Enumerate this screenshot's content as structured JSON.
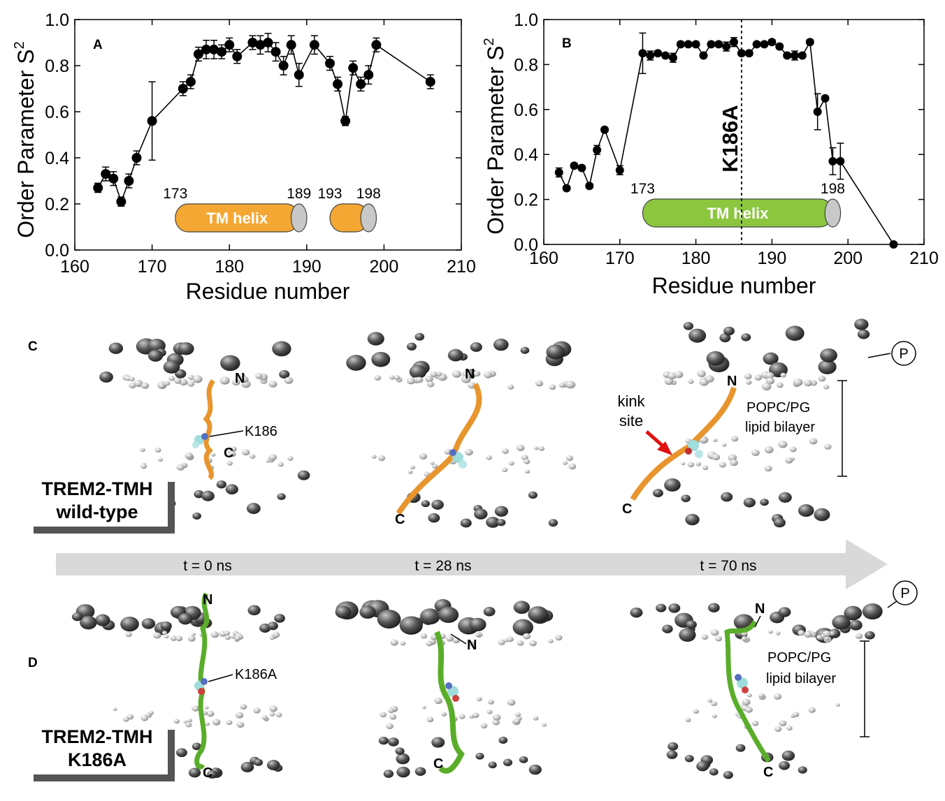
{
  "chart_data": [
    {
      "type": "line",
      "panel_label": "A",
      "xlabel": "Residue number",
      "ylabel": "Order Parameter S",
      "ylabel_sup": "2",
      "xlim": [
        160,
        210
      ],
      "ylim": [
        0,
        1
      ],
      "x_ticks": [
        "160",
        "170",
        "180",
        "190",
        "200",
        "210"
      ],
      "y_ticks": [
        "0.0",
        "0.2",
        "0.4",
        "0.6",
        "0.8",
        "1.0"
      ],
      "grid": false,
      "x": [
        163,
        164,
        165,
        166,
        167,
        168,
        170,
        174,
        175,
        176,
        177,
        178,
        179,
        180,
        181,
        183,
        184,
        185,
        186,
        187,
        188,
        189,
        191,
        193,
        194,
        195,
        196,
        197,
        198,
        199,
        206
      ],
      "y": [
        0.27,
        0.33,
        0.31,
        0.21,
        0.3,
        0.4,
        0.56,
        0.7,
        0.73,
        0.85,
        0.87,
        0.87,
        0.86,
        0.89,
        0.84,
        0.9,
        0.89,
        0.9,
        0.86,
        0.8,
        0.89,
        0.76,
        0.89,
        0.81,
        0.72,
        0.56,
        0.79,
        0.72,
        0.76,
        0.89,
        0.73
      ],
      "errors": [
        0.02,
        0.03,
        0.03,
        0.02,
        0.03,
        0.03,
        0.17,
        0.03,
        0.03,
        0.03,
        0.04,
        0.04,
        0.03,
        0.03,
        0.03,
        0.03,
        0.04,
        0.04,
        0.04,
        0.04,
        0.04,
        0.05,
        0.04,
        0.03,
        0.03,
        0.02,
        0.03,
        0.03,
        0.04,
        0.03,
        0.03
      ],
      "helices": [
        {
          "label": "TM helix",
          "start": "173",
          "end": "189",
          "from": 173,
          "to": 189
        },
        {
          "label": "",
          "start": "193",
          "end": "198",
          "from": 193,
          "to": 198
        }
      ],
      "helix_color": "#f4a733"
    },
    {
      "type": "line",
      "panel_label": "B",
      "xlabel": "Residue number",
      "ylabel": "Order Parameter S",
      "ylabel_sup": "2",
      "xlim": [
        160,
        210
      ],
      "ylim": [
        0,
        1
      ],
      "x_ticks": [
        "160",
        "170",
        "180",
        "190",
        "200",
        "210"
      ],
      "y_ticks": [
        "0.0",
        "0.2",
        "0.4",
        "0.6",
        "0.8",
        "1.0"
      ],
      "grid": false,
      "x": [
        162,
        163,
        164,
        165,
        166,
        167,
        168,
        170,
        173,
        174,
        175,
        176,
        177,
        178,
        179,
        180,
        181,
        182,
        183,
        184,
        185,
        186,
        187,
        188,
        189,
        190,
        191,
        192,
        193,
        194,
        195,
        196,
        197,
        198,
        199,
        206
      ],
      "y": [
        0.32,
        0.25,
        0.35,
        0.34,
        0.26,
        0.42,
        0.51,
        0.33,
        0.85,
        0.84,
        0.85,
        0.84,
        0.83,
        0.89,
        0.89,
        0.89,
        0.84,
        0.89,
        0.89,
        0.88,
        0.9,
        0.85,
        0.85,
        0.89,
        0.89,
        0.9,
        0.88,
        0.84,
        0.84,
        0.84,
        0.9,
        0.59,
        0.65,
        0.37,
        0.37,
        0.0
      ],
      "errors": [
        0.02,
        0.01,
        0.01,
        0.01,
        0.01,
        0.02,
        0.01,
        0.02,
        0.09,
        0.02,
        0.01,
        0.01,
        0.02,
        0.01,
        0.01,
        0.01,
        0.01,
        0.01,
        0.01,
        0.02,
        0.02,
        0.01,
        0.01,
        0.01,
        0.01,
        0.01,
        0.01,
        0.01,
        0.02,
        0.01,
        0.01,
        0.08,
        0.01,
        0.06,
        0.08,
        0.0
      ],
      "mutation_line_x": 186,
      "mutation_label": "K186A",
      "helices": [
        {
          "label": "TM helix",
          "start": "173",
          "end": "198",
          "from": 173,
          "to": 198
        }
      ],
      "helix_color": "#8cc63f"
    }
  ],
  "panel_c": {
    "letter": "C",
    "box_line1": "TREM2-TMH",
    "box_line2": "wild-type",
    "helix_color": "#e8952e",
    "labels": {
      "n": "N",
      "c": "C",
      "residue": "K186",
      "kink_line1": "kink",
      "kink_line2": "site",
      "lipid_line1": "POPC/PG",
      "lipid_line2": "lipid bilayer",
      "phosphate": "P"
    }
  },
  "timeline": {
    "t0": "t = 0 ns",
    "t1": "t = 28 ns",
    "t2": "t = 70 ns"
  },
  "panel_d": {
    "letter": "D",
    "box_line1": "TREM2-TMH",
    "box_line2": "K186A",
    "helix_color": "#5aad2a",
    "labels": {
      "n": "N",
      "c": "C",
      "residue": "K186A",
      "lipid_line1": "POPC/PG",
      "lipid_line2": "lipid bilayer",
      "phosphate": "P"
    }
  }
}
